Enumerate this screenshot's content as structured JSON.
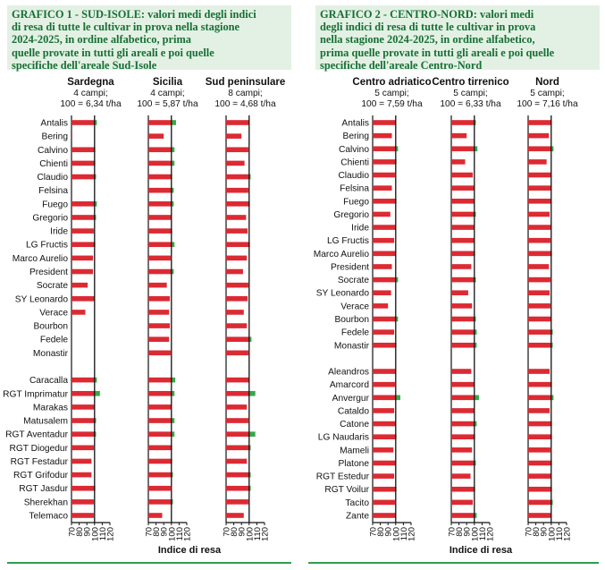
{
  "colors": {
    "bar_red": "#dc2a33",
    "bar_green": "#37a84a",
    "title_text": "#176f35",
    "title_bg": "#e3f1e4",
    "axis": "#111111"
  },
  "chart_data": [
    {
      "type": "bar",
      "orientation": "horizontal",
      "title": "GRAFICO 1 - SUD-ISOLE: valori medi degli indici di resa di tutte le cultivar in prova nella stagione 2024-2025, in ordine alfabetico, prima quelle provate in tutti gli areali e poi quelle specifiche dell'areale Sud-Isole",
      "title_lines": [
        "GRAFICO 1 - SUD-ISOLE: valori medi degli indici",
        "di resa di tutte le cultivar in prova nella stagione",
        "2024-2025, in ordine alfabetico, prima",
        "quelle provate in tutti gli areali e poi quelle",
        "specifiche dell'areale Sud-Isole"
      ],
      "xlabel": "Indice di resa",
      "xlim": [
        70,
        120
      ],
      "xticks": [
        70,
        80,
        90,
        100,
        110,
        120
      ],
      "reference": 100,
      "bar_color_rule": "red below 100, green segment above 100",
      "categories": [
        "Antalis",
        "Bering",
        "Calvino",
        "Chienti",
        "Claudio",
        "Felsina",
        "Fuego",
        "Gregorio",
        "Iride",
        "LG Fructis",
        "Marco Aurelio",
        "President",
        "Socrate",
        "SY Leonardo",
        "Verace",
        "Bourbon",
        "Fedele",
        "Monastir",
        "",
        "Caracalla",
        "RGT Imprimatur",
        "Marakas",
        "Matusalem",
        "RGT Aventadur",
        "RGT Diogedur",
        "RGT Festadur",
        "RGT Grifodur",
        "RGT Jasdur",
        "Sherekhan",
        "Telemaco"
      ],
      "groups": [
        {
          "name": "Sardegna",
          "fields": "4 campi;",
          "base": "100 = 6,34 t/ha",
          "values": [
            103,
            71,
            101,
            101,
            102,
            null,
            103,
            102,
            99,
            101,
            98,
            98,
            91,
            100,
            88,
            null,
            null,
            null,
            null,
            103,
            107,
            100,
            102,
            102,
            99,
            96,
            96,
            101,
            99,
            99
          ]
        },
        {
          "name": "Sicilia",
          "fields": "4 campi;",
          "base": "100 = 5,87 t/ha",
          "values": [
            106,
            90,
            104,
            104,
            101,
            103,
            103,
            100,
            101,
            104,
            99,
            103,
            94,
            98,
            97,
            98,
            97,
            99,
            null,
            105,
            104,
            100,
            104,
            104,
            101,
            101,
            102,
            99,
            102,
            88
          ]
        },
        {
          "name": "Sud peninsulare",
          "fields": "8 campi;",
          "base": "100 = 4,68 t/ha",
          "values": [
            100,
            90,
            99,
            94,
            102,
            99,
            101,
            96,
            98,
            101,
            97,
            92,
            99,
            98,
            93,
            97,
            103,
            99,
            null,
            100,
            108,
            97,
            99,
            108,
            102,
            97,
            102,
            102,
            99,
            93
          ]
        }
      ]
    },
    {
      "type": "bar",
      "orientation": "horizontal",
      "title": "GRAFICO 2 - CENTRO-NORD: valori medi degli indici di resa di tutte le cultivar in prova nella stagione 2024-2025, in ordine alfabetico, prima quelle provate in tutti gli areali e poi quelle specifiche dell'areale Centro-Nord",
      "title_lines": [
        "GRAFICO 2 - CENTRO-NORD: valori medi",
        "degli indici di resa di tutte le cultivar in prova",
        "nella stagione 2024-2025, in ordine alfabetico,",
        "prima quelle provate in tutti gli areali e poi quelle",
        "specifiche dell'areale Centro-Nord"
      ],
      "xlabel": "Indice di resa",
      "xlim": [
        70,
        120
      ],
      "xticks": [
        70,
        80,
        90,
        100,
        110,
        120
      ],
      "reference": 100,
      "bar_color_rule": "red below 100, green segment above 100",
      "categories": [
        "Antalis",
        "Bering",
        "Calvino",
        "Chienti",
        "Claudio",
        "Felsina",
        "Fuego",
        "Gregorio",
        "Iride",
        "LG Fructis",
        "Marco Aurelio",
        "President",
        "Socrate",
        "SY Leonardo",
        "Verace",
        "Bourbon",
        "Fedele",
        "Monastir",
        "",
        "Aleandros",
        "Amarcord",
        "Anvergur",
        "Cataldo",
        "Catone",
        "LG Naudaris",
        "Mameli",
        "Platone",
        "RGT Estedur",
        "RGT Voilur",
        "Tacito",
        "Zante"
      ],
      "groups": [
        {
          "name": "Centro adriatico",
          "fields": "5 campi;",
          "base": "100 = 7,59 t/ha",
          "values": [
            100,
            95,
            103,
            101,
            99,
            95,
            101,
            93,
            100,
            98,
            100,
            95,
            103,
            94,
            90,
            103,
            98,
            101,
            null,
            100,
            99,
            106,
            98,
            100,
            101,
            97,
            100,
            98,
            101,
            99,
            100
          ]
        },
        {
          "name": "Centro tirrenico",
          "fields": "5 campi;",
          "base": "100 = 6,33 t/ha",
          "values": [
            102,
            90,
            104,
            88,
            98,
            100,
            100,
            102,
            100,
            100,
            101,
            96,
            102,
            92,
            97,
            102,
            103,
            103,
            null,
            96,
            100,
            106,
            100,
            103,
            101,
            97,
            102,
            95,
            101,
            98,
            103
          ]
        },
        {
          "name": "Nord",
          "fields": "5 campi;",
          "base": "100 = 7,16 t/ha",
          "values": [
            100,
            97,
            103,
            94,
            100,
            100,
            100,
            98,
            100,
            99,
            101,
            97,
            99,
            98,
            99,
            100,
            102,
            102,
            null,
            98,
            101,
            103,
            98,
            101,
            101,
            99,
            101,
            100,
            101,
            102,
            100
          ]
        }
      ]
    }
  ]
}
